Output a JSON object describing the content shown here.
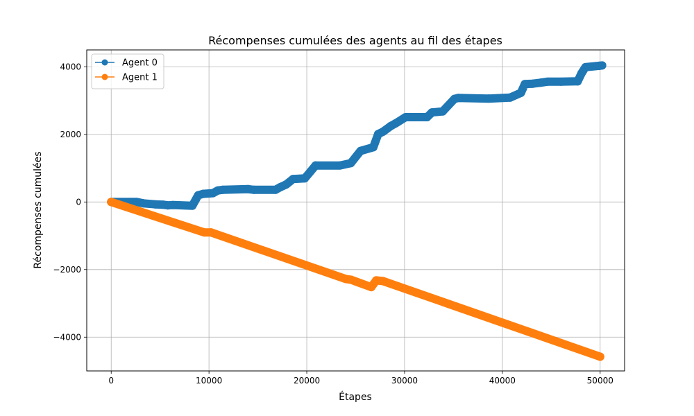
{
  "chart_data": {
    "type": "line",
    "title": "Récompenses cumulées des agents au fil des étapes",
    "xlabel": "Étapes",
    "ylabel": "Récompenses cumulées",
    "xlim": [
      -2500,
      52500
    ],
    "ylim": [
      -5000,
      4500
    ],
    "x_ticks": [
      0,
      10000,
      20000,
      30000,
      40000,
      50000
    ],
    "x_tick_labels": [
      "0",
      "10000",
      "20000",
      "30000",
      "40000",
      "50000"
    ],
    "y_ticks": [
      -4000,
      -2000,
      0,
      2000,
      4000
    ],
    "y_tick_labels": [
      "−4000",
      "−2000",
      "0",
      "2000",
      "4000"
    ],
    "grid": true,
    "legend_position": "top-left",
    "series": [
      {
        "name": "Agent 0",
        "color": "#1f77b4",
        "marker": "circle",
        "x": [
          0,
          2600,
          3300,
          4500,
          5300,
          5800,
          6300,
          8300,
          8900,
          9400,
          10400,
          10900,
          11400,
          14000,
          14600,
          16800,
          17300,
          17900,
          18600,
          19800,
          20900,
          23400,
          24500,
          25500,
          26800,
          27300,
          27800,
          28600,
          29100,
          30100,
          32300,
          32800,
          33900,
          35100,
          35500,
          38600,
          40800,
          41900,
          42300,
          43100,
          43900,
          44600,
          46000,
          47700,
          48100,
          48500,
          49900,
          50200
        ],
        "y": [
          0,
          0,
          -40,
          -70,
          -80,
          -100,
          -90,
          -110,
          200,
          240,
          260,
          340,
          360,
          380,
          360,
          360,
          440,
          520,
          680,
          700,
          1080,
          1080,
          1150,
          1510,
          1620,
          2010,
          2080,
          2250,
          2330,
          2510,
          2510,
          2650,
          2680,
          3050,
          3080,
          3060,
          3090,
          3230,
          3490,
          3500,
          3530,
          3560,
          3560,
          3570,
          3810,
          3990,
          4030,
          4040
        ]
      },
      {
        "name": "Agent 1",
        "color": "#ff7f0e",
        "marker": "circle",
        "x": [
          0,
          9500,
          10200,
          24000,
          24500,
          26600,
          27100,
          27800,
          50000
        ],
        "y": [
          0,
          -900,
          -900,
          -2280,
          -2300,
          -2520,
          -2320,
          -2340,
          -4580
        ]
      }
    ]
  }
}
